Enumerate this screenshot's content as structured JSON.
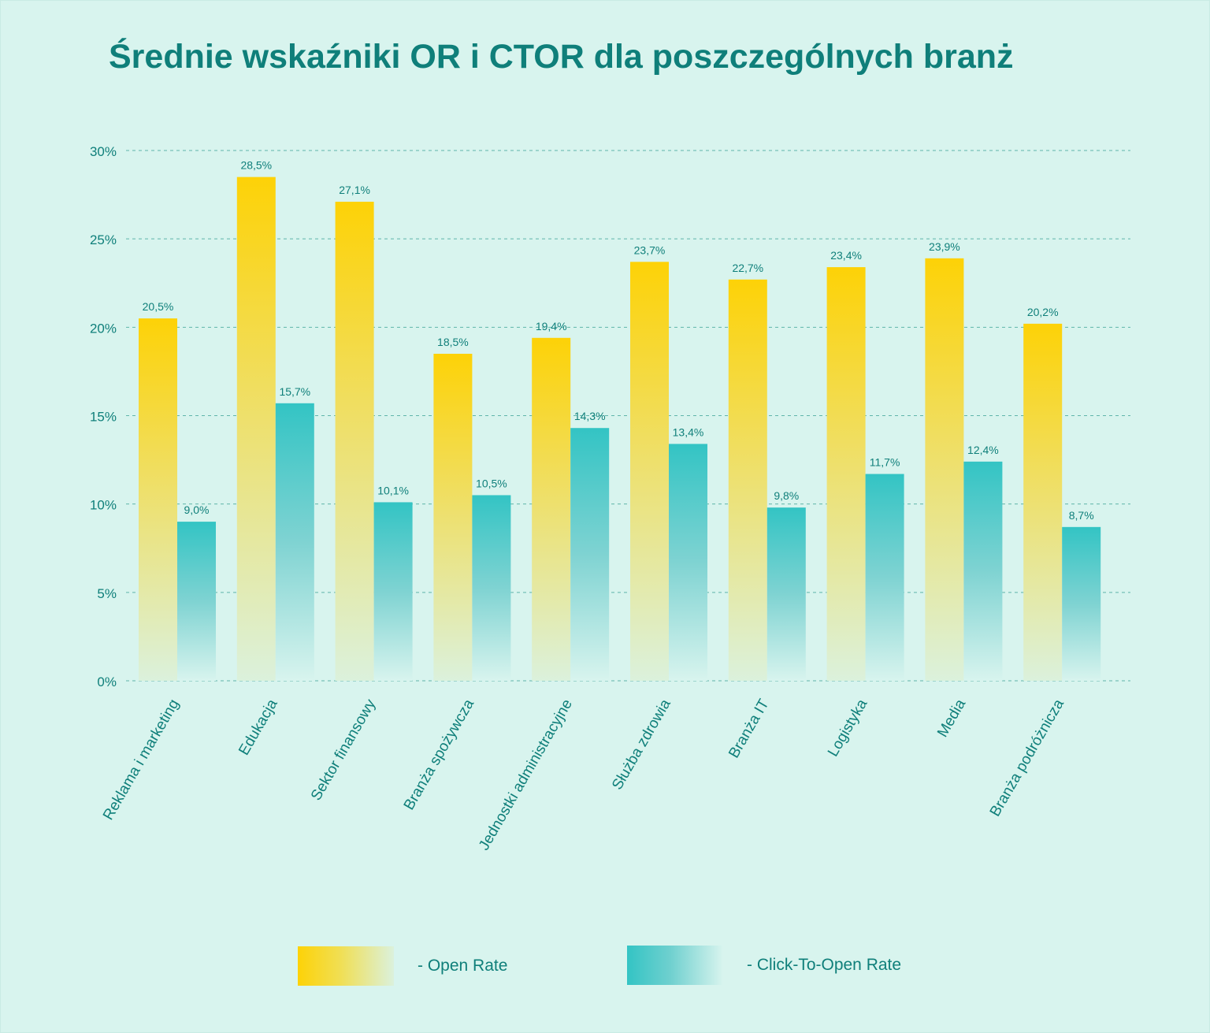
{
  "title": "Średnie wskaźniki OR i CTOR dla poszczególnych branż",
  "colors": {
    "background": "#d8f4ee",
    "text": "#0f7f7a",
    "open_rate": "#fdd207",
    "ctor": "#33c4c4"
  },
  "chart_data": {
    "type": "bar",
    "title": "Średnie wskaźniki OR i CTOR dla poszczególnych branż",
    "categories": [
      "Reklama i marketing",
      "Edukacja",
      "Sektor finansowy",
      "Branża spożywcza",
      "Jednostki administracyjne",
      "Służba zdrowia",
      "Branża IT",
      "Logistyka",
      "Media",
      "Branża podróżnicza"
    ],
    "series": [
      {
        "name": "Open Rate",
        "values": [
          20.5,
          28.5,
          27.1,
          18.5,
          19.4,
          23.7,
          22.7,
          23.4,
          23.9,
          20.2
        ],
        "labels": [
          "20,5%",
          "28,5%",
          "27,1%",
          "18,5%",
          "19,4%",
          "23,7%",
          "22,7%",
          "23,4%",
          "23,9%",
          "20,2%"
        ]
      },
      {
        "name": "Click-To-Open Rate",
        "values": [
          9.0,
          15.7,
          10.1,
          10.5,
          14.3,
          13.4,
          9.8,
          11.7,
          12.4,
          8.7
        ],
        "labels": [
          "9,0%",
          "15,7%",
          "10,1%",
          "10,5%",
          "14,3%",
          "13,4%",
          "9,8%",
          "11,7%",
          "12,4%",
          "8,7%"
        ]
      }
    ],
    "ylim": [
      0,
      30
    ],
    "yticks": [
      "0%",
      "5%",
      "10%",
      "15%",
      "20%",
      "25%",
      "30%"
    ],
    "grid": true,
    "legend_position": "bottom"
  },
  "legend": {
    "open_rate": "-  Open Rate",
    "ctor": "-  Click-To-Open Rate"
  }
}
